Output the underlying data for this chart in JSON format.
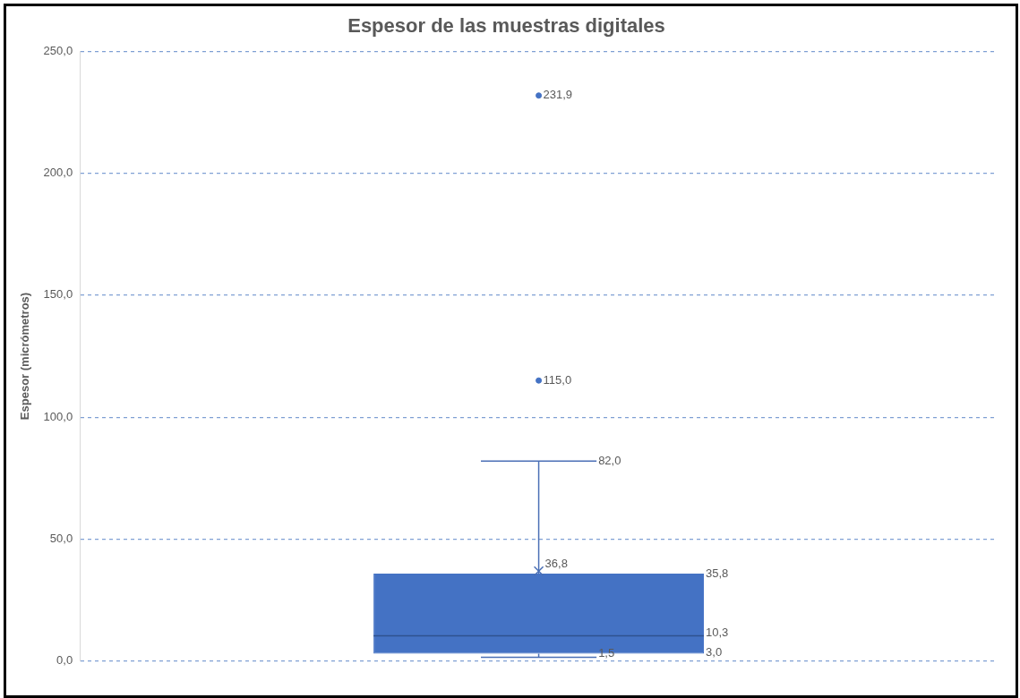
{
  "chart_data": {
    "type": "box",
    "title": "Espesor de las muestras digitales",
    "ylabel": "Espesor (micrómetros)",
    "categories": [
      null
    ],
    "color": "#4472c4",
    "boxes": [
      {
        "low": 1.5,
        "q1": 3.0,
        "median": 10.3,
        "q3": 35.8,
        "high": 82.0,
        "mean": 36.8,
        "outliers": [
          115.0,
          231.9
        ]
      }
    ],
    "ylim": [
      0,
      250
    ],
    "yticks": [
      {
        "value": 0,
        "label": "0,0"
      },
      {
        "value": 50,
        "label": "50,0"
      },
      {
        "value": 100,
        "label": "100,0"
      },
      {
        "value": 150,
        "label": "150,0"
      },
      {
        "value": 200,
        "label": "200,0"
      },
      {
        "value": 250,
        "label": "250,0"
      }
    ],
    "annotations": [
      "115,0",
      "231,9",
      "82,0",
      "36,8",
      "35,8",
      "10,3",
      "3,0",
      "1,5"
    ],
    "grid": "y",
    "legend": false
  }
}
